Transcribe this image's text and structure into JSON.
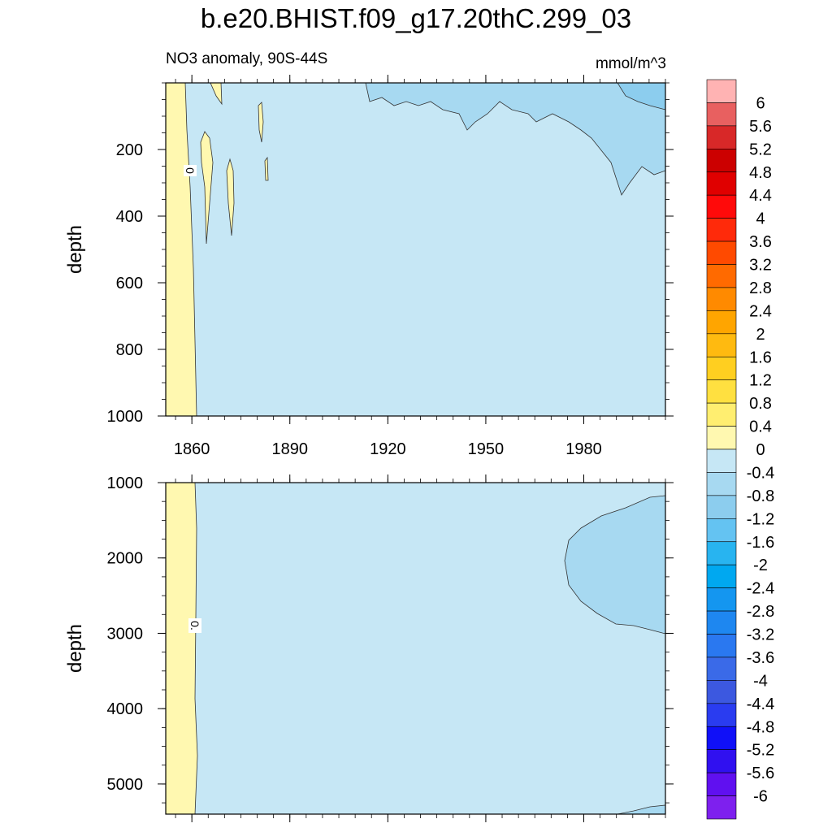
{
  "figure": {
    "title": "b.e20.BHIST.f09_g17.20thC.299_03",
    "subtitle": "NO3 anomaly, 90S-44S",
    "units": "mmol/m^3"
  },
  "chart_data": [
    {
      "type": "heatmap",
      "panel": "top",
      "ylabel": "depth",
      "xlim": [
        1852,
        2005
      ],
      "ylim": [
        1000,
        0
      ],
      "x_ticks": [
        1860,
        1890,
        1920,
        1950,
        1980
      ],
      "y_ticks": [
        200,
        400,
        600,
        800,
        1000
      ],
      "contour_labels": [
        "0"
      ],
      "regions": [
        {
          "level": "0 to 0.4",
          "color": "#fff8b0",
          "description": "positive band near 1852-1862 all depths"
        },
        {
          "level": "-0.4 to 0",
          "color": "#c6e7f5",
          "description": "background"
        },
        {
          "level": "-0.8 to -0.4",
          "color": "#a7d9f1",
          "description": "upper layers after 1930, deepening after 1975"
        },
        {
          "level": "-1.2 to -0.8",
          "color": "#8ccdee",
          "description": "near surface after 1995"
        }
      ]
    },
    {
      "type": "heatmap",
      "panel": "bottom",
      "ylabel": "depth",
      "xlim": [
        1852,
        2005
      ],
      "ylim": [
        5400,
        1000
      ],
      "y_ticks": [
        1000,
        2000,
        3000,
        4000,
        5000
      ],
      "contour_labels": [
        "0."
      ],
      "regions": [
        {
          "level": "0 to 0.4",
          "color": "#fff8b0",
          "description": "positive band near 1852-1862 all depths"
        },
        {
          "level": "-0.4 to 0",
          "color": "#c6e7f5",
          "description": "background"
        },
        {
          "level": "-0.8 to -0.4",
          "color": "#a7d9f1",
          "description": "1000-3000 m after 1975"
        }
      ]
    },
    {
      "type": "colorbar",
      "labels": [
        "6",
        "5.6",
        "5.2",
        "4.8",
        "4.4",
        "4",
        "3.6",
        "3.2",
        "2.8",
        "2.4",
        "2",
        "1.6",
        "1.2",
        "0.8",
        "0.4",
        "0",
        "-0.4",
        "-0.8",
        "-1.2",
        "-1.6",
        "-2",
        "-2.4",
        "-2.8",
        "-3.2",
        "-3.6",
        "-4",
        "-4.4",
        "-4.8",
        "-5.2",
        "-5.6",
        "-6"
      ],
      "colors": [
        "#ffb3b3",
        "#e86060",
        "#d82828",
        "#cc0000",
        "#e00000",
        "#ff0a0a",
        "#ff2a0a",
        "#ff4a00",
        "#ff6a00",
        "#ff8a00",
        "#ffa500",
        "#ffba10",
        "#ffcf20",
        "#ffe040",
        "#ffee70",
        "#fff8b0",
        "#c6e7f5",
        "#a7d9f1",
        "#8ccdee",
        "#64c3f2",
        "#28b4f0",
        "#00a8f0",
        "#1496f0",
        "#1e87f0",
        "#2a78f0",
        "#3a6ae8",
        "#3c58e0",
        "#2a3cf0",
        "#1010f8",
        "#3010f0",
        "#6010f0",
        "#7e20ee"
      ]
    }
  ]
}
